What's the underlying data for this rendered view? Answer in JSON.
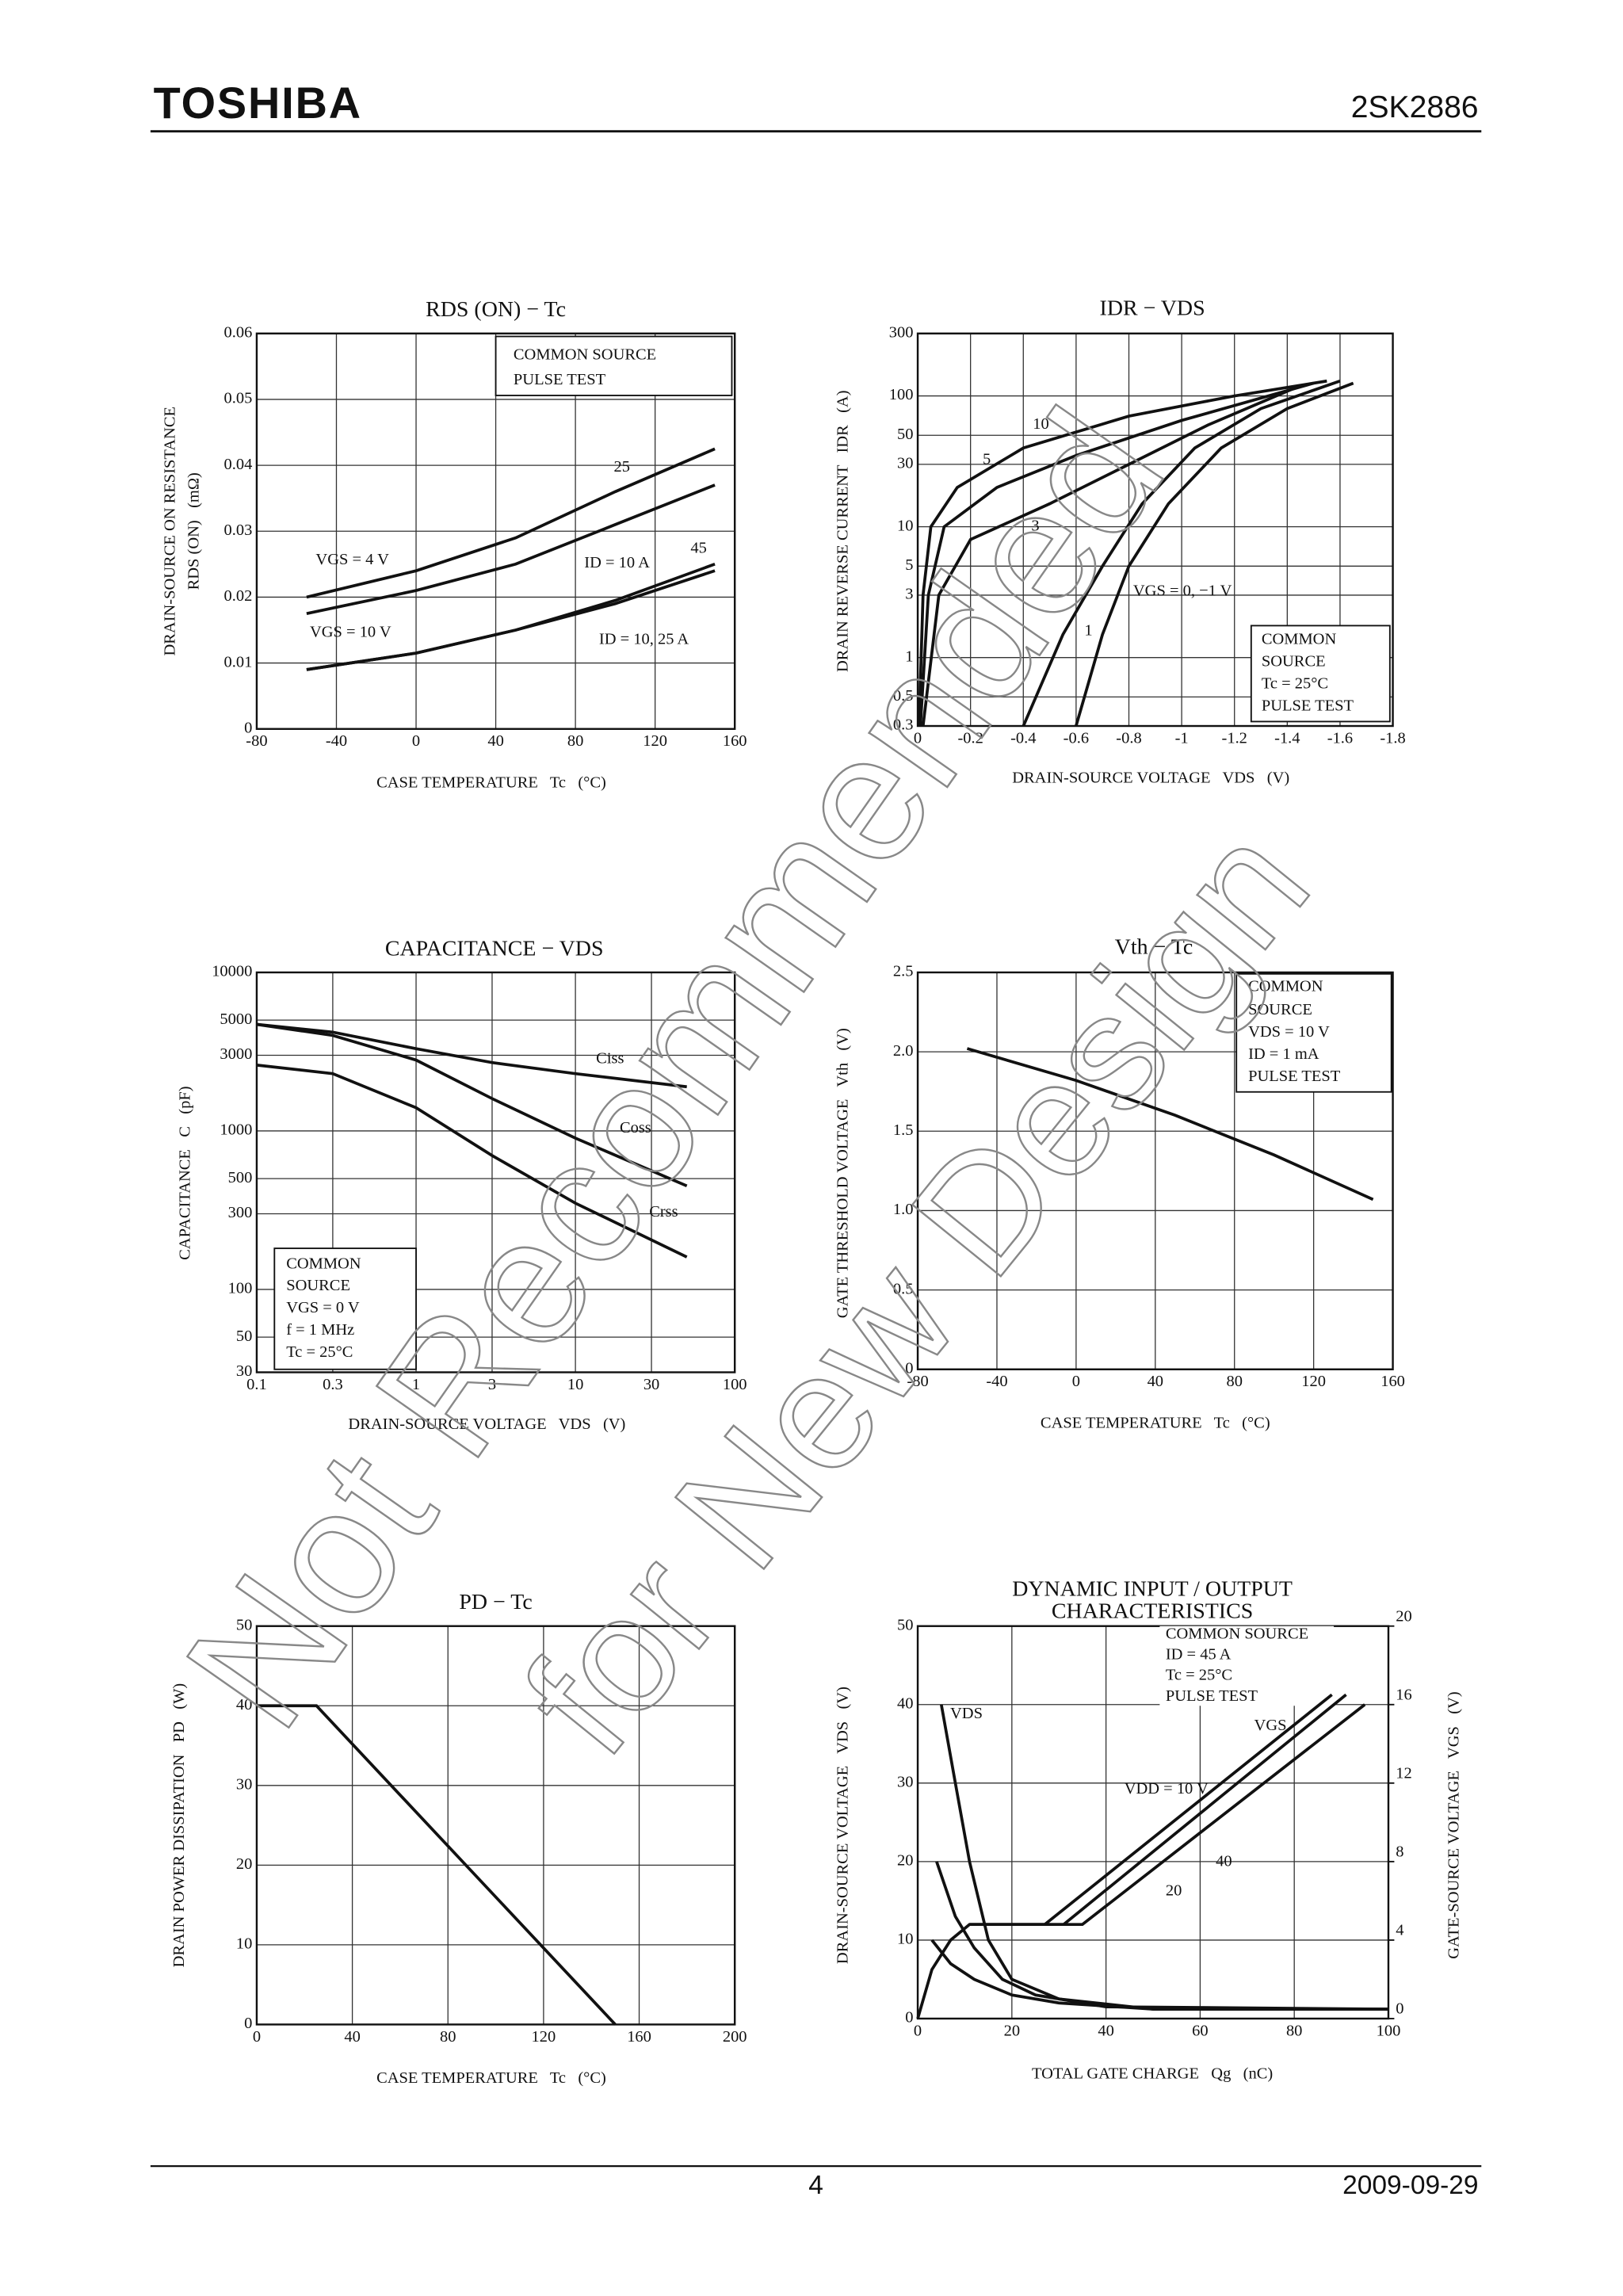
{
  "header": {
    "brand": "TOSHIBA",
    "part": "2SK2886"
  },
  "footer": {
    "page": "4",
    "date": "2009-09-29"
  },
  "watermark": [
    "Not Recommended",
    "for New Design"
  ],
  "chart_data": [
    {
      "type": "line",
      "title": [
        "RDS (ON) − Tc"
      ],
      "xlabel": "CASE TEMPERATURE   Tc   (°C)",
      "ylabel": [
        "DRAIN-SOURCE ON RESISTANCE",
        "RDS (ON)   (mΩ)"
      ],
      "xlim": [
        -80,
        160
      ],
      "xticks": [
        -80,
        -40,
        0,
        40,
        80,
        120,
        160
      ],
      "ylim": [
        0,
        0.06
      ],
      "yticks": [
        0,
        0.01,
        0.02,
        0.03,
        0.04,
        0.05,
        0.06
      ],
      "grid": true,
      "color": "#111111",
      "series": [
        {
          "name": "25",
          "x": [
            -55,
            0,
            50,
            100,
            150
          ],
          "values": [
            0.02,
            0.024,
            0.029,
            0.036,
            0.0425
          ]
        },
        {
          "name": "ID = 10 A",
          "x": [
            -55,
            0,
            50,
            100,
            150
          ],
          "values": [
            0.0175,
            0.021,
            0.025,
            0.031,
            0.037
          ]
        },
        {
          "name": "45",
          "x": [
            -55,
            0,
            50,
            100,
            150
          ],
          "values": [
            0.009,
            0.0115,
            0.015,
            0.0195,
            0.025
          ]
        },
        {
          "name": "ID = 10, 25 A",
          "x": [
            -55,
            0,
            50,
            100,
            150
          ],
          "values": [
            0.009,
            0.0115,
            0.015,
            0.019,
            0.024
          ]
        }
      ],
      "annotations": [
        "VGS = 4 V",
        "VGS = 10 V",
        "COMMON SOURCE",
        "PULSE TEST"
      ]
    },
    {
      "type": "line",
      "title": [
        "IDR − VDS"
      ],
      "xlabel": "DRAIN-SOURCE VOLTAGE   VDS   (V)",
      "ylabel": [
        "DRAIN REVERSE CURRENT   IDR   (A)"
      ],
      "xlim": [
        0,
        -1.8
      ],
      "xticks": [
        0,
        -0.2,
        -0.4,
        -0.6,
        -0.8,
        -1.0,
        -1.2,
        -1.4,
        -1.6,
        -1.8
      ],
      "ylim": [
        0.3,
        300
      ],
      "ylog": true,
      "yticks": [
        0.3,
        0.5,
        1,
        3,
        5,
        10,
        30,
        50,
        100,
        300
      ],
      "grid": true,
      "color": "#111111",
      "series": [
        {
          "name": "10",
          "x": [
            -0.005,
            -0.02,
            -0.05,
            -0.15,
            -0.4,
            -0.8,
            -1.2,
            -1.55
          ],
          "values": [
            0.3,
            3,
            10,
            20,
            40,
            70,
            100,
            130
          ]
        },
        {
          "name": "5",
          "x": [
            -0.01,
            -0.04,
            -0.1,
            -0.3,
            -0.6,
            -1.0,
            -1.5
          ],
          "values": [
            0.3,
            3,
            10,
            20,
            35,
            65,
            125
          ]
        },
        {
          "name": "3",
          "x": [
            -0.02,
            -0.08,
            -0.2,
            -0.5,
            -0.8,
            -1.1,
            -1.45
          ],
          "values": [
            0.3,
            3,
            8,
            15,
            30,
            60,
            120
          ]
        },
        {
          "name": "1",
          "x": [
            -0.4,
            -0.55,
            -0.7,
            -0.85,
            -1.05,
            -1.3,
            -1.6
          ],
          "values": [
            0.3,
            1.5,
            5,
            15,
            40,
            80,
            130
          ]
        },
        {
          "name": "VGS = 0, −1 V",
          "x": [
            -0.6,
            -0.7,
            -0.8,
            -0.95,
            -1.15,
            -1.4,
            -1.65
          ],
          "values": [
            0.3,
            1.5,
            5,
            15,
            40,
            80,
            125
          ]
        }
      ],
      "annotations": [
        "COMMON",
        "SOURCE",
        "Tc = 25°C",
        "PULSE TEST"
      ]
    },
    {
      "type": "line",
      "title": [
        "CAPACITANCE − VDS"
      ],
      "xlabel": "DRAIN-SOURCE VOLTAGE   VDS   (V)",
      "ylabel": [
        "CAPACITANCE   C   (pF)"
      ],
      "xlim": [
        0.1,
        100
      ],
      "xlog": true,
      "xticks": [
        0.1,
        0.3,
        1,
        3,
        10,
        30,
        100
      ],
      "ylim": [
        30,
        10000
      ],
      "ylog": true,
      "yticks": [
        30,
        50,
        100,
        300,
        500,
        1000,
        3000,
        5000,
        10000
      ],
      "grid": true,
      "color": "#111111",
      "series": [
        {
          "name": "Ciss",
          "x": [
            0.1,
            0.3,
            1,
            3,
            10,
            50
          ],
          "values": [
            4700,
            4200,
            3300,
            2700,
            2300,
            1900
          ]
        },
        {
          "name": "Coss",
          "x": [
            0.1,
            0.3,
            1,
            3,
            10,
            50
          ],
          "values": [
            4700,
            4000,
            2800,
            1600,
            900,
            450
          ]
        },
        {
          "name": "Crss",
          "x": [
            0.1,
            0.3,
            1,
            3,
            10,
            50
          ],
          "values": [
            2600,
            2300,
            1400,
            700,
            350,
            160
          ]
        }
      ],
      "annotations": [
        "COMMON",
        "SOURCE",
        "VGS = 0 V",
        "f = 1 MHz",
        "Tc = 25°C"
      ]
    },
    {
      "type": "line",
      "title": [
        "Vth − Tc"
      ],
      "xlabel": "CASE TEMPERATURE   Tc   (°C)",
      "ylabel": [
        "GATE THRESHOLD VOLTAGE   Vth   (V)"
      ],
      "xlim": [
        -80,
        160
      ],
      "xticks": [
        -80,
        -40,
        0,
        40,
        80,
        120,
        160
      ],
      "ylim": [
        0,
        2.5
      ],
      "yticks": [
        0,
        0.5,
        {
          "value": 1,
          "label": "1.0"
        },
        1.5,
        {
          "value": 2,
          "label": "2.0"
        },
        2.5
      ],
      "grid": true,
      "color": "#111111",
      "series": [
        {
          "x": [
            -55,
            0,
            50,
            100,
            150
          ],
          "values": [
            2.02,
            1.82,
            1.6,
            1.35,
            1.07
          ]
        }
      ],
      "annotations": [
        "COMMON",
        "SOURCE",
        "VDS = 10 V",
        "ID = 1 mA",
        "PULSE TEST"
      ]
    },
    {
      "type": "line",
      "title": [
        "PD − Tc"
      ],
      "xlabel": "CASE TEMPERATURE   Tc   (°C)",
      "ylabel": [
        "DRAIN POWER DISSIPATION   PD   (W)"
      ],
      "xlim": [
        0,
        200
      ],
      "xticks": [
        0,
        40,
        80,
        120,
        160,
        200
      ],
      "ylim": [
        0,
        50
      ],
      "yticks": [
        0,
        10,
        20,
        30,
        40,
        50
      ],
      "grid": true,
      "color": "#111111",
      "series": [
        {
          "x": [
            0,
            25,
            150
          ],
          "values": [
            40,
            40,
            0
          ]
        }
      ],
      "annotations": []
    },
    {
      "type": "line",
      "title": [
        "DYNAMIC INPUT / OUTPUT",
        "CHARACTERISTICS"
      ],
      "xlabel": "TOTAL GATE CHARGE   Qg   (nC)",
      "ylabel": [
        "DRAIN-SOURCE VOLTAGE   VDS   (V)"
      ],
      "y2label": "GATE-SOURCE VOLTAGE   VGS   (V)",
      "xlim": [
        0,
        100
      ],
      "xticks": [
        0,
        20,
        40,
        60,
        80,
        100
      ],
      "ylim": [
        0,
        50
      ],
      "yticks": [
        0,
        10,
        20,
        30,
        40,
        50
      ],
      "y2lim": [
        0,
        20
      ],
      "y2ticks": [
        0,
        4,
        8,
        12,
        16,
        20
      ],
      "grid": true,
      "color": "#111111",
      "series": [
        {
          "x": [
            5,
            8,
            11,
            15,
            20,
            30,
            50,
            100
          ],
          "values": [
            40,
            30,
            20,
            10,
            5,
            2.5,
            1.2,
            1.2
          ]
        },
        {
          "x": [
            4,
            8,
            12,
            18,
            25,
            40,
            100
          ],
          "values": [
            20,
            13,
            9,
            5,
            3,
            1.5,
            1.2
          ]
        },
        {
          "x": [
            3,
            7,
            12,
            20,
            30,
            50,
            100
          ],
          "values": [
            10,
            7,
            5,
            3,
            2,
            1.2,
            1.2
          ]
        },
        {
          "name": "VDD = 10 V",
          "axis": "y2",
          "x": [
            0,
            3,
            7,
            11,
            27,
            88
          ],
          "values": [
            0,
            2.5,
            4,
            4.8,
            4.8,
            16.5
          ]
        },
        {
          "name": "20",
          "axis": "y2",
          "x": [
            11,
            31,
            91
          ],
          "values": [
            4.8,
            4.8,
            16.5
          ]
        },
        {
          "name": "40",
          "axis": "y2",
          "x": [
            11,
            35,
            95
          ],
          "values": [
            4.8,
            4.8,
            16
          ]
        }
      ],
      "annotations": [
        "VDS",
        "VGS",
        "COMMON SOURCE",
        "ID = 45 A",
        "Tc = 25°C",
        "PULSE TEST"
      ]
    }
  ]
}
